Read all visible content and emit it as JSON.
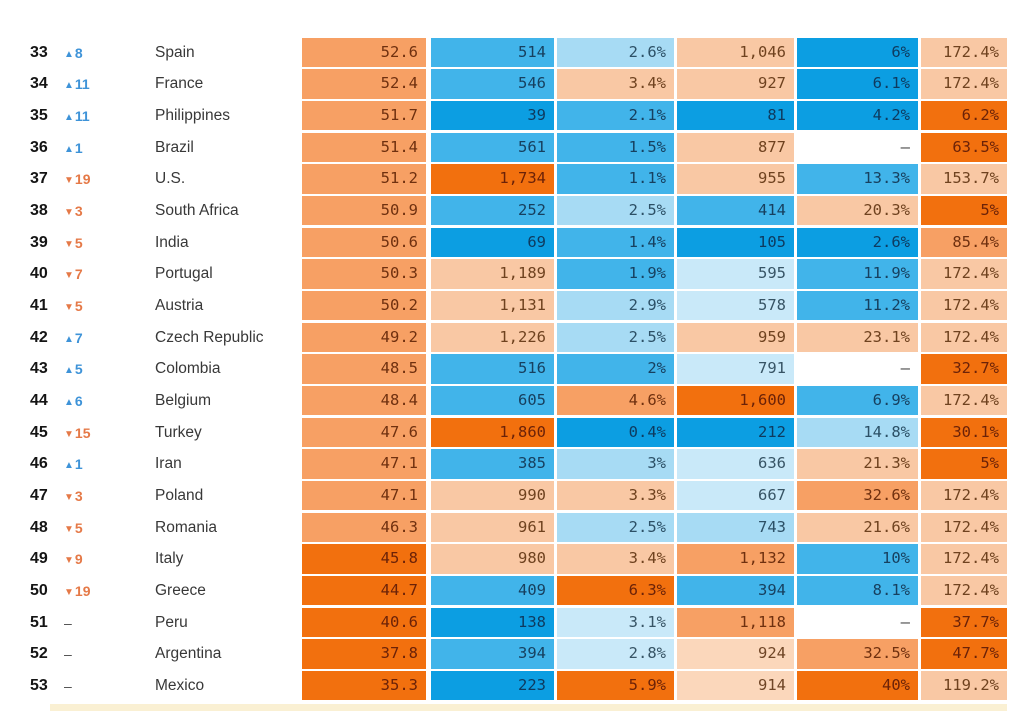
{
  "palette": {
    "tones": {
      "b4": "#0C9EE2",
      "b3": "#41B4EA",
      "b2": "#A7DBF4",
      "b1": "#C9E9F9",
      "w": "#FFFFFF",
      "o1": "#FBD7BB",
      "o2": "#F9C8A4",
      "o3": "#F7A064",
      "o4": "#F2700E"
    },
    "tone_text": {
      "b4": "#0E3A5E",
      "b3": "#17405F",
      "b2": "#2C5066",
      "b1": "#375465",
      "w": "#3C3C3C",
      "o1": "#6F4526",
      "o2": "#6F421F",
      "o3": "#6F300F",
      "o4": "#6B2208"
    },
    "change_up": "#3E93D8",
    "change_down": "#E57947",
    "change_none": "#4A4A4A",
    "bottom_strip": "#FAF0D3"
  },
  "table": {
    "rows": [
      {
        "rank": "33",
        "dir": "up",
        "change": "8",
        "country": "Spain",
        "cells": [
          {
            "v": "52.6",
            "t": "o3"
          },
          {
            "v": "514",
            "t": "b3"
          },
          {
            "v": "2.6%",
            "t": "b2"
          },
          {
            "v": "1,046",
            "t": "o2"
          },
          {
            "v": "6%",
            "t": "b4"
          },
          {
            "v": "172.4%",
            "t": "o2"
          }
        ]
      },
      {
        "rank": "34",
        "dir": "up",
        "change": "11",
        "country": "France",
        "cells": [
          {
            "v": "52.4",
            "t": "o3"
          },
          {
            "v": "546",
            "t": "b3"
          },
          {
            "v": "3.4%",
            "t": "o2"
          },
          {
            "v": "927",
            "t": "o2"
          },
          {
            "v": "6.1%",
            "t": "b4"
          },
          {
            "v": "172.4%",
            "t": "o2"
          }
        ]
      },
      {
        "rank": "35",
        "dir": "up",
        "change": "11",
        "country": "Philippines",
        "cells": [
          {
            "v": "51.7",
            "t": "o3"
          },
          {
            "v": "39",
            "t": "b4"
          },
          {
            "v": "2.1%",
            "t": "b3"
          },
          {
            "v": "81",
            "t": "b4"
          },
          {
            "v": "4.2%",
            "t": "b4"
          },
          {
            "v": "6.2%",
            "t": "o4"
          }
        ]
      },
      {
        "rank": "36",
        "dir": "up",
        "change": "1",
        "country": "Brazil",
        "cells": [
          {
            "v": "51.4",
            "t": "o3"
          },
          {
            "v": "561",
            "t": "b3"
          },
          {
            "v": "1.5%",
            "t": "b3"
          },
          {
            "v": "877",
            "t": "o2"
          },
          {
            "v": "–",
            "t": "w"
          },
          {
            "v": "63.5%",
            "t": "o4"
          }
        ]
      },
      {
        "rank": "37",
        "dir": "down",
        "change": "19",
        "country": "U.S.",
        "cells": [
          {
            "v": "51.2",
            "t": "o3"
          },
          {
            "v": "1,734",
            "t": "o4"
          },
          {
            "v": "1.1%",
            "t": "b3"
          },
          {
            "v": "955",
            "t": "o2"
          },
          {
            "v": "13.3%",
            "t": "b3"
          },
          {
            "v": "153.7%",
            "t": "o2"
          }
        ]
      },
      {
        "rank": "38",
        "dir": "down",
        "change": "3",
        "country": "South Africa",
        "cells": [
          {
            "v": "50.9",
            "t": "o3"
          },
          {
            "v": "252",
            "t": "b3"
          },
          {
            "v": "2.5%",
            "t": "b2"
          },
          {
            "v": "414",
            "t": "b3"
          },
          {
            "v": "20.3%",
            "t": "o2"
          },
          {
            "v": "5%",
            "t": "o4"
          }
        ]
      },
      {
        "rank": "39",
        "dir": "down",
        "change": "5",
        "country": "India",
        "cells": [
          {
            "v": "50.6",
            "t": "o3"
          },
          {
            "v": "69",
            "t": "b4"
          },
          {
            "v": "1.4%",
            "t": "b3"
          },
          {
            "v": "105",
            "t": "b4"
          },
          {
            "v": "2.6%",
            "t": "b4"
          },
          {
            "v": "85.4%",
            "t": "o3"
          }
        ]
      },
      {
        "rank": "40",
        "dir": "down",
        "change": "7",
        "country": "Portugal",
        "cells": [
          {
            "v": "50.3",
            "t": "o3"
          },
          {
            "v": "1,189",
            "t": "o2"
          },
          {
            "v": "1.9%",
            "t": "b3"
          },
          {
            "v": "595",
            "t": "b1"
          },
          {
            "v": "11.9%",
            "t": "b3"
          },
          {
            "v": "172.4%",
            "t": "o2"
          }
        ]
      },
      {
        "rank": "41",
        "dir": "down",
        "change": "5",
        "country": "Austria",
        "cells": [
          {
            "v": "50.2",
            "t": "o3"
          },
          {
            "v": "1,131",
            "t": "o2"
          },
          {
            "v": "2.9%",
            "t": "b2"
          },
          {
            "v": "578",
            "t": "b1"
          },
          {
            "v": "11.2%",
            "t": "b3"
          },
          {
            "v": "172.4%",
            "t": "o2"
          }
        ]
      },
      {
        "rank": "42",
        "dir": "up",
        "change": "7",
        "country": "Czech Republic",
        "cells": [
          {
            "v": "49.2",
            "t": "o3"
          },
          {
            "v": "1,226",
            "t": "o2"
          },
          {
            "v": "2.5%",
            "t": "b2"
          },
          {
            "v": "959",
            "t": "o2"
          },
          {
            "v": "23.1%",
            "t": "o2"
          },
          {
            "v": "172.4%",
            "t": "o2"
          }
        ]
      },
      {
        "rank": "43",
        "dir": "up",
        "change": "5",
        "country": "Colombia",
        "cells": [
          {
            "v": "48.5",
            "t": "o3"
          },
          {
            "v": "516",
            "t": "b3"
          },
          {
            "v": "2%",
            "t": "b3"
          },
          {
            "v": "791",
            "t": "b1"
          },
          {
            "v": "–",
            "t": "w"
          },
          {
            "v": "32.7%",
            "t": "o4"
          }
        ]
      },
      {
        "rank": "44",
        "dir": "up",
        "change": "6",
        "country": "Belgium",
        "cells": [
          {
            "v": "48.4",
            "t": "o3"
          },
          {
            "v": "605",
            "t": "b3"
          },
          {
            "v": "4.6%",
            "t": "o3"
          },
          {
            "v": "1,600",
            "t": "o4"
          },
          {
            "v": "6.9%",
            "t": "b3"
          },
          {
            "v": "172.4%",
            "t": "o2"
          }
        ]
      },
      {
        "rank": "45",
        "dir": "down",
        "change": "15",
        "country": "Turkey",
        "cells": [
          {
            "v": "47.6",
            "t": "o3"
          },
          {
            "v": "1,860",
            "t": "o4"
          },
          {
            "v": "0.4%",
            "t": "b4"
          },
          {
            "v": "212",
            "t": "b4"
          },
          {
            "v": "14.8%",
            "t": "b2"
          },
          {
            "v": "30.1%",
            "t": "o4"
          }
        ]
      },
      {
        "rank": "46",
        "dir": "up",
        "change": "1",
        "country": "Iran",
        "cells": [
          {
            "v": "47.1",
            "t": "o3"
          },
          {
            "v": "385",
            "t": "b3"
          },
          {
            "v": "3%",
            "t": "b2"
          },
          {
            "v": "636",
            "t": "b1"
          },
          {
            "v": "21.3%",
            "t": "o2"
          },
          {
            "v": "5%",
            "t": "o4"
          }
        ]
      },
      {
        "rank": "47",
        "dir": "down",
        "change": "3",
        "country": "Poland",
        "cells": [
          {
            "v": "47.1",
            "t": "o3"
          },
          {
            "v": "990",
            "t": "o2"
          },
          {
            "v": "3.3%",
            "t": "o2"
          },
          {
            "v": "667",
            "t": "b1"
          },
          {
            "v": "32.6%",
            "t": "o3"
          },
          {
            "v": "172.4%",
            "t": "o2"
          }
        ]
      },
      {
        "rank": "48",
        "dir": "down",
        "change": "5",
        "country": "Romania",
        "cells": [
          {
            "v": "46.3",
            "t": "o3"
          },
          {
            "v": "961",
            "t": "o2"
          },
          {
            "v": "2.5%",
            "t": "b2"
          },
          {
            "v": "743",
            "t": "b2"
          },
          {
            "v": "21.6%",
            "t": "o2"
          },
          {
            "v": "172.4%",
            "t": "o2"
          }
        ]
      },
      {
        "rank": "49",
        "dir": "down",
        "change": "9",
        "country": "Italy",
        "cells": [
          {
            "v": "45.8",
            "t": "o4"
          },
          {
            "v": "980",
            "t": "o2"
          },
          {
            "v": "3.4%",
            "t": "o2"
          },
          {
            "v": "1,132",
            "t": "o3"
          },
          {
            "v": "10%",
            "t": "b3"
          },
          {
            "v": "172.4%",
            "t": "o2"
          }
        ]
      },
      {
        "rank": "50",
        "dir": "down",
        "change": "19",
        "country": "Greece",
        "cells": [
          {
            "v": "44.7",
            "t": "o4"
          },
          {
            "v": "409",
            "t": "b3"
          },
          {
            "v": "6.3%",
            "t": "o4"
          },
          {
            "v": "394",
            "t": "b3"
          },
          {
            "v": "8.1%",
            "t": "b3"
          },
          {
            "v": "172.4%",
            "t": "o2"
          }
        ]
      },
      {
        "rank": "51",
        "dir": "none",
        "change": "–",
        "country": "Peru",
        "cells": [
          {
            "v": "40.6",
            "t": "o4"
          },
          {
            "v": "138",
            "t": "b4"
          },
          {
            "v": "3.1%",
            "t": "b1"
          },
          {
            "v": "1,118",
            "t": "o3"
          },
          {
            "v": "–",
            "t": "w"
          },
          {
            "v": "37.7%",
            "t": "o4"
          }
        ]
      },
      {
        "rank": "52",
        "dir": "none",
        "change": "–",
        "country": "Argentina",
        "cells": [
          {
            "v": "37.8",
            "t": "o4"
          },
          {
            "v": "394",
            "t": "b3"
          },
          {
            "v": "2.8%",
            "t": "b1"
          },
          {
            "v": "924",
            "t": "o1"
          },
          {
            "v": "32.5%",
            "t": "o3"
          },
          {
            "v": "47.7%",
            "t": "o4"
          }
        ]
      },
      {
        "rank": "53",
        "dir": "none",
        "change": "–",
        "country": "Mexico",
        "cells": [
          {
            "v": "35.3",
            "t": "o4"
          },
          {
            "v": "223",
            "t": "b4"
          },
          {
            "v": "5.9%",
            "t": "o4"
          },
          {
            "v": "914",
            "t": "o1"
          },
          {
            "v": "40%",
            "t": "o4"
          },
          {
            "v": "119.2%",
            "t": "o2"
          }
        ]
      }
    ]
  },
  "chart_data": {
    "type": "table",
    "columns": [
      "rank",
      "rank_change",
      "country",
      "score",
      "value_1",
      "value_2_pct",
      "value_3",
      "value_4_pct",
      "value_5_pct"
    ],
    "rows": [
      [
        33,
        "▲8",
        "Spain",
        52.6,
        "514",
        "2.6%",
        "1,046",
        "6%",
        "172.4%"
      ],
      [
        34,
        "▲11",
        "France",
        52.4,
        "546",
        "3.4%",
        "927",
        "6.1%",
        "172.4%"
      ],
      [
        35,
        "▲11",
        "Philippines",
        51.7,
        "39",
        "2.1%",
        "81",
        "4.2%",
        "6.2%"
      ],
      [
        36,
        "▲1",
        "Brazil",
        51.4,
        "561",
        "1.5%",
        "877",
        "–",
        "63.5%"
      ],
      [
        37,
        "▼19",
        "U.S.",
        51.2,
        "1,734",
        "1.1%",
        "955",
        "13.3%",
        "153.7%"
      ],
      [
        38,
        "▼3",
        "South Africa",
        50.9,
        "252",
        "2.5%",
        "414",
        "20.3%",
        "5%"
      ],
      [
        39,
        "▼5",
        "India",
        50.6,
        "69",
        "1.4%",
        "105",
        "2.6%",
        "85.4%"
      ],
      [
        40,
        "▼7",
        "Portugal",
        50.3,
        "1,189",
        "1.9%",
        "595",
        "11.9%",
        "172.4%"
      ],
      [
        41,
        "▼5",
        "Austria",
        50.2,
        "1,131",
        "2.9%",
        "578",
        "11.2%",
        "172.4%"
      ],
      [
        42,
        "▲7",
        "Czech Republic",
        49.2,
        "1,226",
        "2.5%",
        "959",
        "23.1%",
        "172.4%"
      ],
      [
        43,
        "▲5",
        "Colombia",
        48.5,
        "516",
        "2%",
        "791",
        "–",
        "32.7%"
      ],
      [
        44,
        "▲6",
        "Belgium",
        48.4,
        "605",
        "4.6%",
        "1,600",
        "6.9%",
        "172.4%"
      ],
      [
        45,
        "▼15",
        "Turkey",
        47.6,
        "1,860",
        "0.4%",
        "212",
        "14.8%",
        "30.1%"
      ],
      [
        46,
        "▲1",
        "Iran",
        47.1,
        "385",
        "3%",
        "636",
        "21.3%",
        "5%"
      ],
      [
        47,
        "▼3",
        "Poland",
        47.1,
        "990",
        "3.3%",
        "667",
        "32.6%",
        "172.4%"
      ],
      [
        48,
        "▼5",
        "Romania",
        46.3,
        "961",
        "2.5%",
        "743",
        "21.6%",
        "172.4%"
      ],
      [
        49,
        "▼9",
        "Italy",
        45.8,
        "980",
        "3.4%",
        "1,132",
        "10%",
        "172.4%"
      ],
      [
        50,
        "▼19",
        "Greece",
        44.7,
        "409",
        "6.3%",
        "394",
        "8.1%",
        "172.4%"
      ],
      [
        51,
        "–",
        "Peru",
        40.6,
        "138",
        "3.1%",
        "1,118",
        "–",
        "37.7%"
      ],
      [
        52,
        "–",
        "Argentina",
        37.8,
        "394",
        "2.8%",
        "924",
        "32.5%",
        "47.7%"
      ],
      [
        53,
        "–",
        "Mexico",
        35.3,
        "223",
        "5.9%",
        "914",
        "40%",
        "119.2%"
      ]
    ]
  }
}
